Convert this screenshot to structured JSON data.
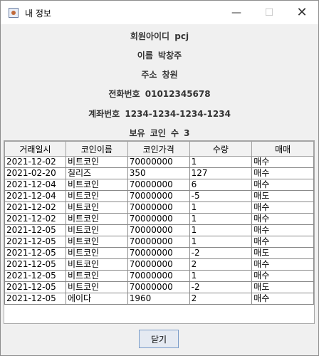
{
  "window": {
    "title": "내 정보"
  },
  "info": {
    "member_id": "회원아이디  pcj",
    "name": "이름  박창주",
    "address": "주소  창원",
    "phone": "전화번호  01012345678",
    "account": "계좌번호  1234-1234-1234-1234",
    "coin_count": "보유 코인 수  3"
  },
  "table": {
    "columns": [
      "거래일시",
      "코인이름",
      "코인가격",
      "수량",
      "매매"
    ],
    "rows": [
      [
        "2021-12-02",
        "비트코인",
        "70000000",
        "1",
        "매수"
      ],
      [
        "2021-02-20",
        "칠리즈",
        "350",
        "127",
        "매수"
      ],
      [
        "2021-12-04",
        "비트코인",
        "70000000",
        "6",
        "매수"
      ],
      [
        "2021-12-04",
        "비트코인",
        "70000000",
        "-5",
        "매도"
      ],
      [
        "2021-12-02",
        "비트코인",
        "70000000",
        "1",
        "매수"
      ],
      [
        "2021-12-02",
        "비트코인",
        "70000000",
        "1",
        "매수"
      ],
      [
        "2021-12-05",
        "비트코인",
        "70000000",
        "1",
        "매수"
      ],
      [
        "2021-12-05",
        "비트코인",
        "70000000",
        "1",
        "매수"
      ],
      [
        "2021-12-05",
        "비트코인",
        "70000000",
        "-2",
        "매도"
      ],
      [
        "2021-12-05",
        "비트코인",
        "70000000",
        "2",
        "매수"
      ],
      [
        "2021-12-05",
        "비트코인",
        "70000000",
        "1",
        "매수"
      ],
      [
        "2021-12-05",
        "비트코인",
        "70000000",
        "-2",
        "매도"
      ],
      [
        "2021-12-05",
        "에이다",
        "1960",
        "2",
        "매수"
      ]
    ]
  },
  "buttons": {
    "close_label": "닫기"
  }
}
